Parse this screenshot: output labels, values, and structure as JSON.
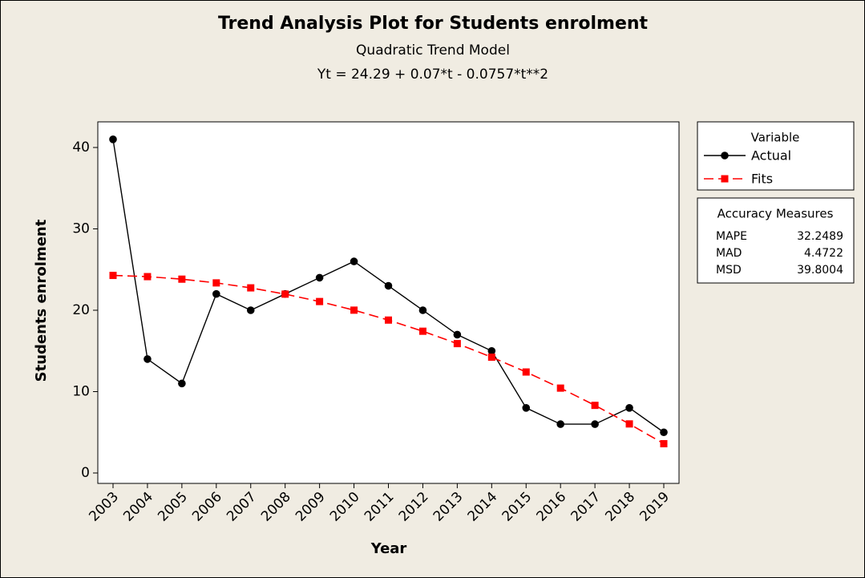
{
  "chart_data": {
    "type": "line",
    "title": "Trend Analysis Plot for Students enrolment",
    "subtitles": [
      "Quadratic Trend Model",
      "Yt = 24.29 + 0.07*t - 0.0757*t**2"
    ],
    "x_label": "Year",
    "y_label": "Students enrolment",
    "categories": [
      "2003",
      "2004",
      "2005",
      "2006",
      "2007",
      "2008",
      "2009",
      "2010",
      "2011",
      "2012",
      "2013",
      "2014",
      "2015",
      "2016",
      "2017",
      "2018",
      "2019"
    ],
    "series": [
      {
        "name": "Actual",
        "color": "#000000",
        "marker": "circle",
        "dashed": false,
        "values": [
          41,
          14,
          11,
          22,
          20,
          22,
          24,
          26,
          23,
          20,
          17,
          15,
          8,
          6,
          6,
          8,
          5
        ]
      },
      {
        "name": "Fits",
        "color": "#ff0000",
        "marker": "square",
        "dashed": true,
        "values": [
          24.28,
          24.13,
          23.82,
          23.36,
          22.75,
          21.98,
          21.07,
          20.01,
          18.79,
          17.42,
          15.9,
          14.23,
          12.41,
          10.43,
          8.31,
          6.03,
          3.6
        ]
      }
    ],
    "ylim": [
      -1.28,
      43.15
    ],
    "yticks": [
      0,
      10,
      20,
      30,
      40
    ],
    "legend_title": "Variable",
    "accuracy_measures": {
      "title": "Accuracy Measures",
      "rows": [
        {
          "name": "MAPE",
          "value": 32.2489
        },
        {
          "name": "MAD",
          "value": 4.4722
        },
        {
          "name": "MSD",
          "value": 39.8004
        }
      ]
    }
  }
}
